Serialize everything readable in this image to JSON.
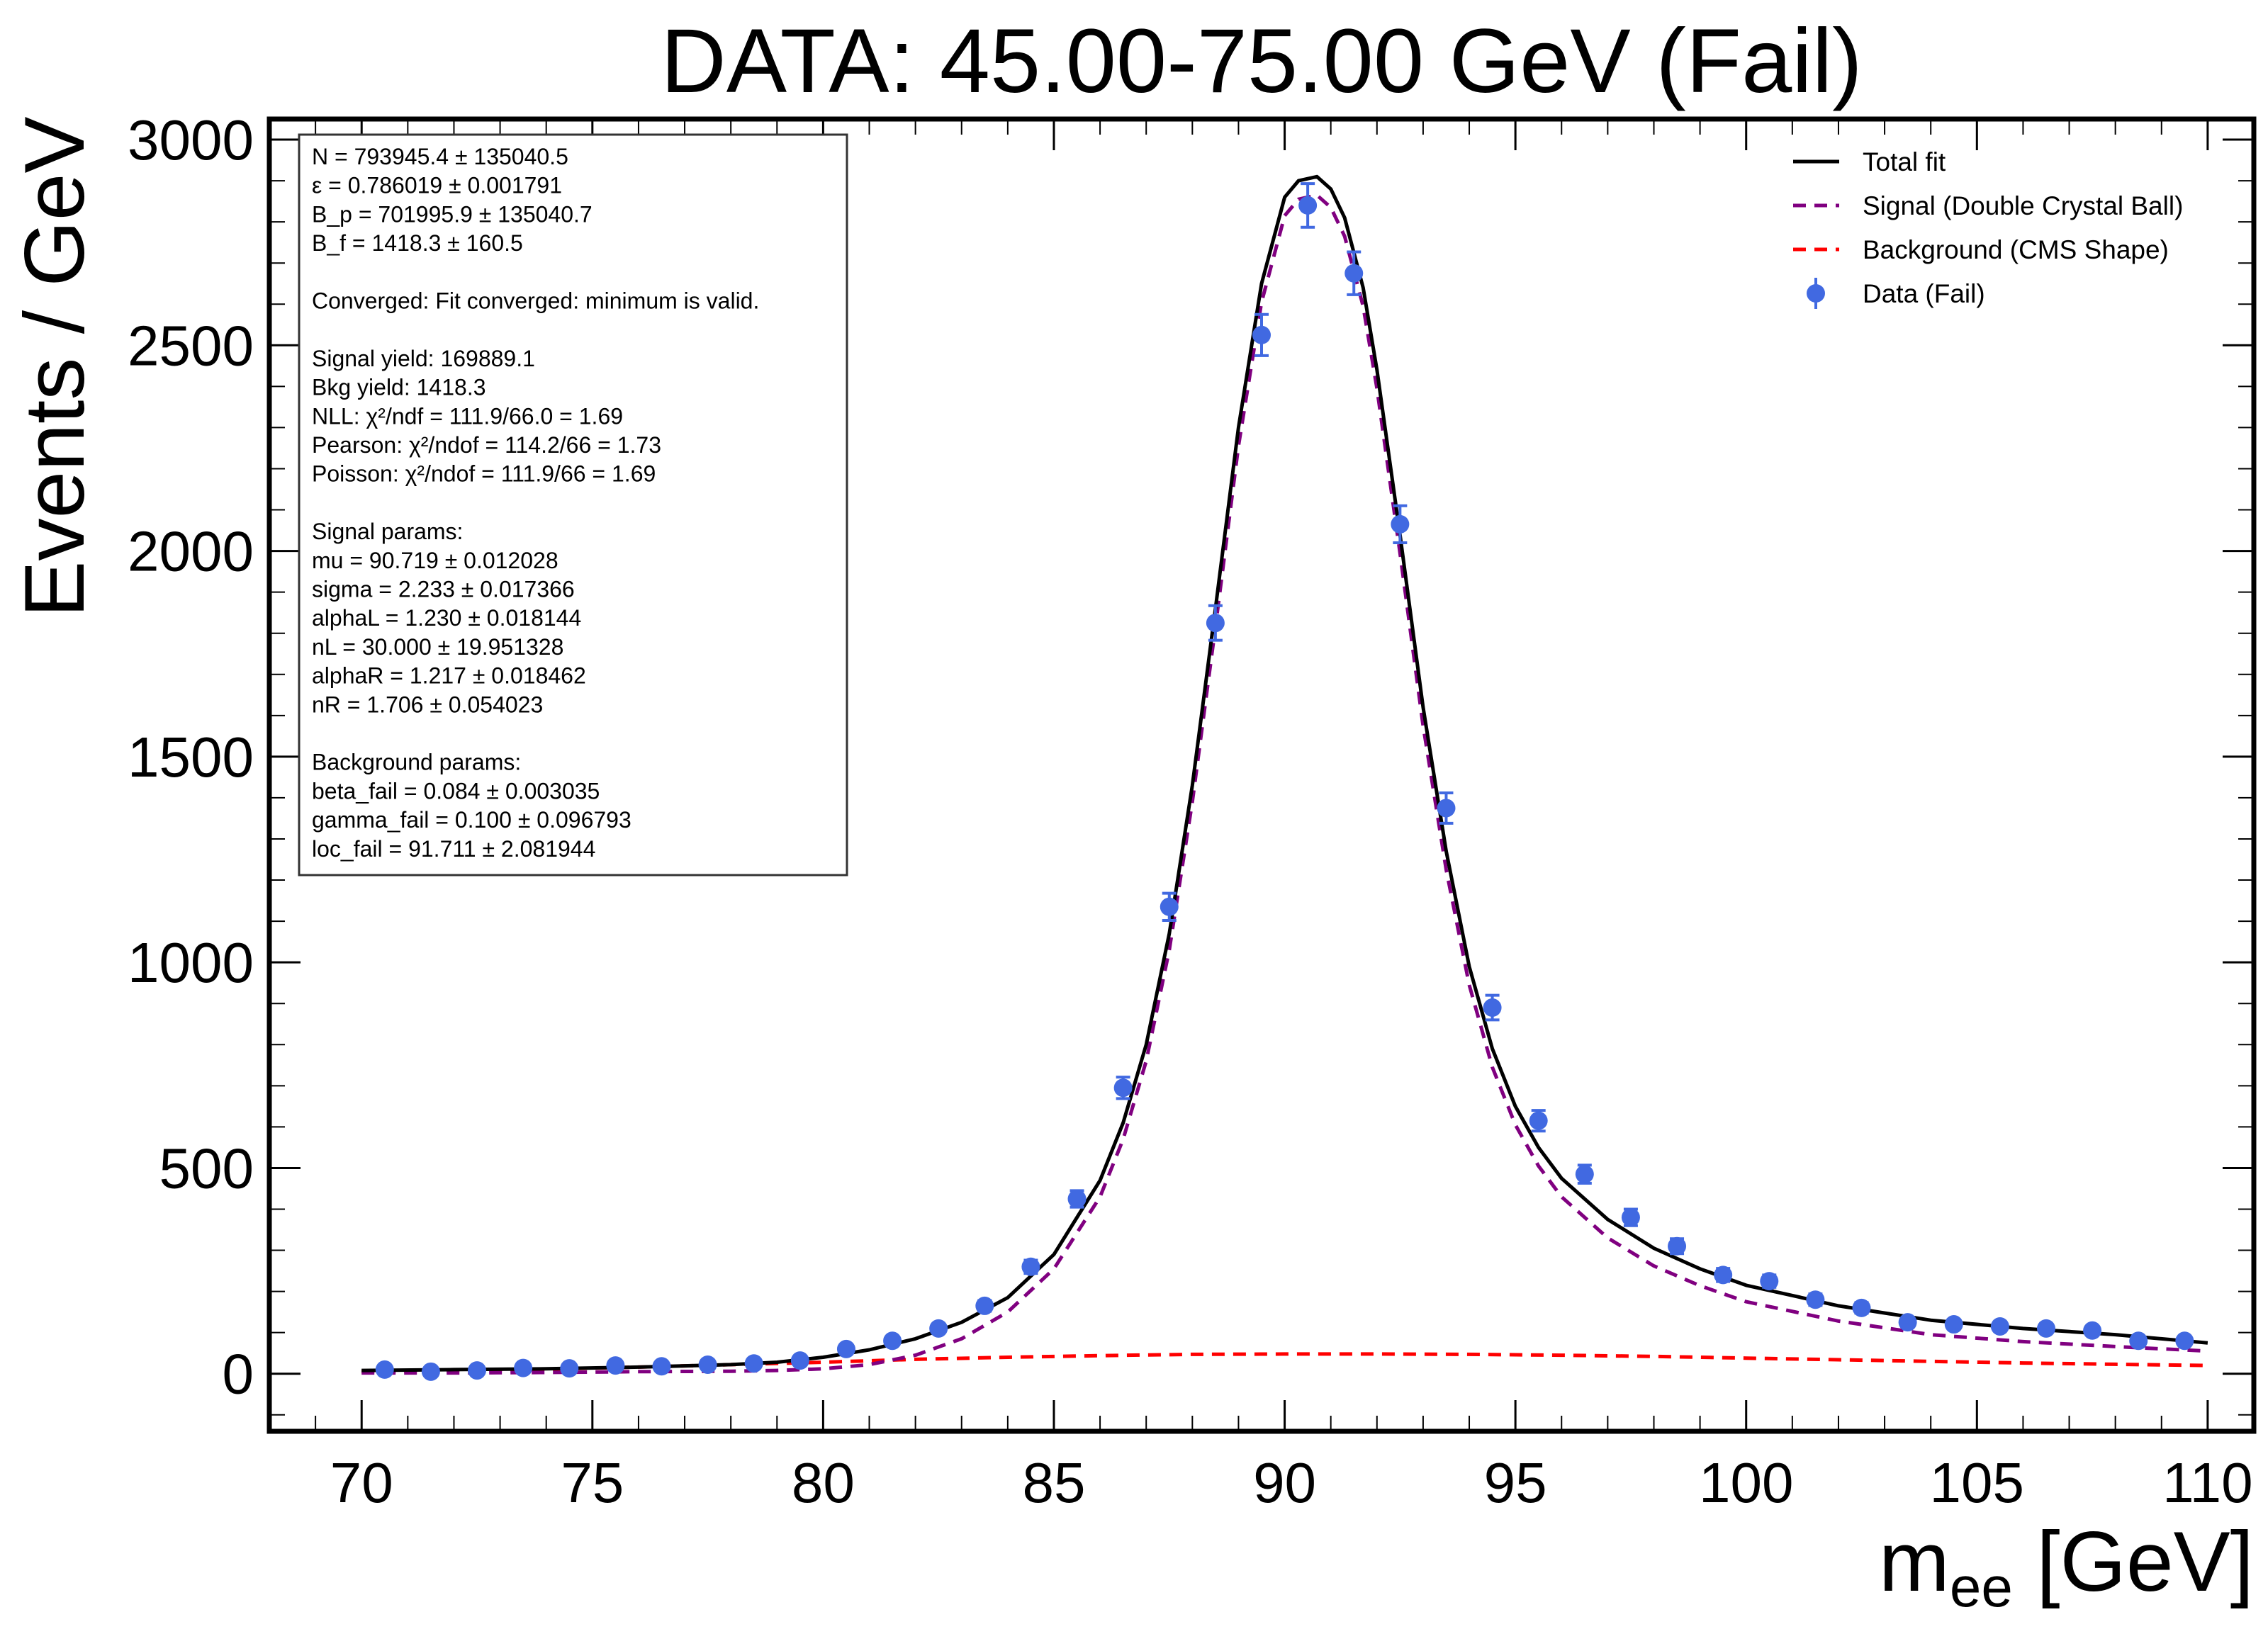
{
  "chart_data": {
    "type": "scatter",
    "title": "DATA: 45.00-75.00 GeV (Fail)",
    "ylabel": "Events / GeV",
    "xlabel_main": "m",
    "xlabel_sub": "ee",
    "xlabel_unit": " [GeV]",
    "xlim": [
      68,
      111
    ],
    "ylim": [
      -140,
      3050
    ],
    "x_ticks": [
      70,
      75,
      80,
      85,
      90,
      95,
      100,
      105,
      110
    ],
    "y_ticks": [
      0,
      500,
      1000,
      1500,
      2000,
      2500,
      3000
    ],
    "legend_position": "top-right",
    "legend": [
      {
        "label": "Total fit",
        "style": "solid",
        "color": "#000000"
      },
      {
        "label": "Signal (Double Crystal Ball)",
        "style": "dashed",
        "color": "#800080"
      },
      {
        "label": "Background (CMS Shape)",
        "style": "dashed",
        "color": "#ff0000"
      },
      {
        "label": "Data (Fail)",
        "style": "marker",
        "color": "#4169e1"
      }
    ],
    "series": [
      {
        "name": "Data (Fail)",
        "color": "#4169e1",
        "x": [
          70.5,
          71.5,
          72.5,
          73.5,
          74.5,
          75.5,
          76.5,
          77.5,
          78.5,
          79.5,
          80.5,
          81.5,
          82.5,
          83.5,
          84.5,
          85.5,
          86.5,
          87.5,
          88.5,
          89.5,
          90.5,
          91.5,
          92.5,
          93.5,
          94.5,
          95.5,
          96.5,
          97.5,
          98.5,
          99.5,
          100.5,
          101.5,
          102.5,
          103.5,
          104.5,
          105.5,
          106.5,
          107.5,
          108.5,
          109.5
        ],
        "y": [
          10,
          5,
          8,
          14,
          13,
          20,
          18,
          22,
          25,
          32,
          60,
          80,
          110,
          165,
          260,
          425,
          695,
          1135,
          1825,
          2525,
          2840,
          2675,
          2065,
          1375,
          890,
          615,
          485,
          380,
          310,
          240,
          225,
          180,
          160,
          125,
          120,
          115,
          110,
          105,
          80,
          80
        ],
        "yerr": [
          3,
          2,
          3,
          4,
          4,
          5,
          5,
          5,
          6,
          6,
          8,
          9,
          10,
          13,
          16,
          20,
          26,
          33,
          42,
          50,
          53,
          52,
          45,
          37,
          30,
          25,
          22,
          20,
          18,
          16,
          15,
          14,
          13,
          11,
          11,
          11,
          10,
          10,
          9,
          9
        ]
      },
      {
        "name": "Total fit",
        "color": "#000000",
        "x": [
          70,
          72,
          74,
          76,
          78,
          79,
          80,
          81,
          82,
          83,
          84,
          85,
          86,
          86.5,
          87,
          87.5,
          88,
          88.5,
          89,
          89.5,
          90,
          90.3,
          90.7,
          91,
          91.3,
          91.7,
          92,
          92.5,
          93,
          93.5,
          94,
          94.5,
          95,
          95.5,
          96,
          97,
          98,
          99,
          100,
          102,
          104,
          106,
          108,
          110
        ],
        "y": [
          8,
          10,
          12,
          16,
          22,
          28,
          40,
          58,
          85,
          125,
          185,
          290,
          470,
          610,
          800,
          1070,
          1430,
          1860,
          2300,
          2650,
          2860,
          2900,
          2910,
          2880,
          2810,
          2640,
          2440,
          2040,
          1620,
          1270,
          990,
          790,
          650,
          550,
          475,
          375,
          305,
          255,
          215,
          165,
          130,
          110,
          95,
          75
        ]
      },
      {
        "name": "Signal (Double Crystal Ball)",
        "color": "#800080",
        "x": [
          70,
          72,
          74,
          76,
          78,
          79,
          80,
          81,
          82,
          83,
          84,
          85,
          86,
          86.5,
          87,
          87.5,
          88,
          88.5,
          89,
          89.5,
          90,
          90.3,
          90.7,
          91,
          91.3,
          91.7,
          92,
          92.5,
          93,
          93.5,
          94,
          94.5,
          95,
          95.5,
          96,
          97,
          98,
          99,
          100,
          102,
          104,
          106,
          108,
          110
        ],
        "y": [
          2,
          2,
          3,
          5,
          6,
          8,
          12,
          22,
          45,
          85,
          150,
          255,
          430,
          570,
          760,
          1030,
          1390,
          1815,
          2255,
          2605,
          2815,
          2855,
          2865,
          2835,
          2765,
          2595,
          2395,
          1995,
          1575,
          1225,
          945,
          745,
          605,
          505,
          430,
          330,
          262,
          214,
          175,
          128,
          95,
          78,
          66,
          55
        ]
      },
      {
        "name": "Background (CMS Shape)",
        "color": "#ff0000",
        "x": [
          70,
          72,
          74,
          76,
          78,
          80,
          82,
          84,
          86,
          88,
          90,
          92,
          94,
          96,
          98,
          100,
          102,
          104,
          106,
          108,
          110
        ],
        "y": [
          5,
          8,
          11,
          16,
          22,
          28,
          35,
          40,
          44,
          47,
          48,
          48,
          47,
          45,
          42,
          38,
          34,
          30,
          26,
          23,
          20
        ]
      }
    ]
  },
  "stats_box": {
    "lines": [
      "N = 793945.4 ± 135040.5",
      "ε = 0.786019 ± 0.001791",
      "B_p = 701995.9 ± 135040.7",
      "B_f = 1418.3 ± 160.5",
      "",
      "Converged: Fit converged: minimum is valid.",
      "",
      "Signal yield: 169889.1",
      "Bkg yield: 1418.3",
      "NLL: χ²/ndf = 111.9/66.0 = 1.69",
      "Pearson: χ²/ndof = 114.2/66 = 1.73",
      "Poisson: χ²/ndof = 111.9/66 = 1.69",
      "",
      "Signal params:",
      "mu = 90.719 ± 0.012028",
      "sigma = 2.233 ± 0.017366",
      "alphaL = 1.230 ± 0.018144",
      "nL = 30.000 ± 19.951328",
      "alphaR = 1.217 ± 0.018462",
      "nR = 1.706 ± 0.054023",
      "",
      "Background params:",
      "beta_fail = 0.084 ± 0.003035",
      "gamma_fail = 0.100 ± 0.096793",
      "loc_fail = 91.711 ± 2.081944"
    ]
  }
}
